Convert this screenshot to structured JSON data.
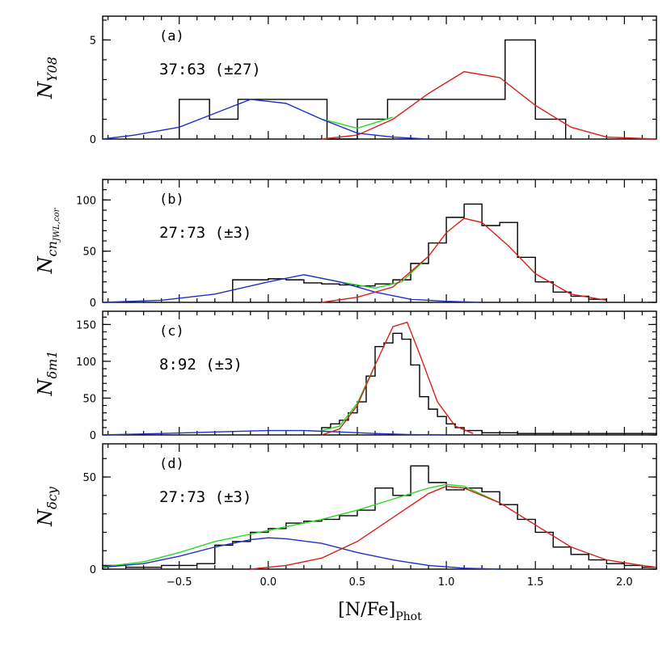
{
  "colors": {
    "hist": "#000000",
    "blue": "#1f2fc8",
    "red": "#d8201a",
    "green": "#22dd22"
  },
  "chart_data": {
    "type": "multi-panel histogram",
    "xlabel_main": "[N/Fe]",
    "xlabel_sub": "Phot",
    "xlim": [
      -0.93,
      2.18
    ],
    "xticks": [
      "−0.5",
      "0.0",
      "0.5",
      "1.0",
      "1.5",
      "2.0"
    ],
    "xtick_values": [
      -0.5,
      0.0,
      0.5,
      1.0,
      1.5,
      2.0
    ],
    "panels": [
      {
        "label": "(a)",
        "ratio": "37:63 (±27)",
        "ylabel_main": "N",
        "ylabel_sub": "Y08",
        "ylim": [
          0,
          6.2
        ],
        "yticks": [
          "0",
          "5"
        ],
        "ytick_values": [
          0,
          5
        ],
        "hist_edges": [
          -0.5,
          -0.33,
          -0.17,
          0.0,
          0.17,
          0.33,
          0.5,
          0.67,
          0.83,
          1.0,
          1.17,
          1.33,
          1.5,
          1.67
        ],
        "hist_counts": [
          2,
          1,
          2,
          2,
          2,
          0,
          1,
          2,
          2,
          2,
          2,
          5,
          1
        ],
        "blue": {
          "x": [
            -0.93,
            -0.75,
            -0.5,
            -0.3,
            -0.1,
            0.1,
            0.3,
            0.5,
            0.7,
            0.9
          ],
          "y": [
            0.0,
            0.2,
            0.6,
            1.3,
            2.0,
            1.8,
            1.0,
            0.3,
            0.1,
            0.0
          ]
        },
        "red": {
          "x": [
            0.3,
            0.5,
            0.7,
            0.9,
            1.1,
            1.3,
            1.5,
            1.7,
            1.9,
            2.18
          ],
          "y": [
            0.0,
            0.2,
            1.0,
            2.3,
            3.4,
            3.1,
            1.7,
            0.6,
            0.1,
            0.0
          ]
        },
        "green": {
          "x": [
            0.3,
            0.5,
            0.7
          ],
          "y": [
            1.0,
            0.55,
            1.1
          ]
        }
      },
      {
        "label": "(b)",
        "ratio": "27:73 (±3)",
        "ylabel_main": "N",
        "ylabel_sub": "cn",
        "ylabel_sub2": "JWL,cor",
        "ylim": [
          0,
          120
        ],
        "yticks": [
          "0",
          "50",
          "100"
        ],
        "ytick_values": [
          0,
          50,
          100
        ],
        "hist_edges": [
          -0.2,
          -0.1,
          0.0,
          0.1,
          0.2,
          0.3,
          0.4,
          0.5,
          0.6,
          0.7,
          0.8,
          0.9,
          1.0,
          1.1,
          1.2,
          1.3,
          1.4,
          1.5,
          1.6,
          1.7,
          1.8,
          1.9
        ],
        "hist_counts": [
          22,
          22,
          23,
          22,
          19,
          18,
          17,
          16,
          18,
          22,
          38,
          58,
          83,
          96,
          75,
          78,
          44,
          20,
          10,
          6,
          3
        ],
        "blue": {
          "x": [
            -0.93,
            -0.6,
            -0.3,
            0.0,
            0.2,
            0.4,
            0.6,
            0.8,
            1.0,
            1.2
          ],
          "y": [
            0,
            2,
            8,
            20,
            27,
            20,
            10,
            3,
            1,
            0
          ]
        },
        "red": {
          "x": [
            0.3,
            0.5,
            0.7,
            0.9,
            1.0,
            1.1,
            1.2,
            1.35,
            1.5,
            1.7,
            1.9
          ],
          "y": [
            0,
            5,
            15,
            45,
            68,
            82,
            78,
            55,
            28,
            8,
            2
          ]
        },
        "green": {
          "x": [
            0.2,
            0.4,
            0.6,
            0.75,
            0.9
          ],
          "y": [
            27,
            20,
            14,
            20,
            45
          ]
        }
      },
      {
        "label": "(c)",
        "ratio": "8:92 (±3)",
        "ylabel_main": "N",
        "ylabel_sub": "δm1",
        "ylim": [
          0,
          168
        ],
        "yticks": [
          "0",
          "50",
          "100",
          "150"
        ],
        "ytick_values": [
          0,
          50,
          100,
          150
        ],
        "hist_edges": [
          0.3,
          0.35,
          0.4,
          0.45,
          0.5,
          0.55,
          0.6,
          0.65,
          0.7,
          0.75,
          0.8,
          0.85,
          0.9,
          0.95,
          1.0,
          1.05,
          1.1,
          1.2,
          1.4,
          2.18
        ],
        "hist_counts": [
          10,
          15,
          20,
          30,
          45,
          80,
          120,
          125,
          138,
          130,
          95,
          52,
          35,
          25,
          15,
          10,
          6,
          3,
          2
        ],
        "blue": {
          "x": [
            -0.93,
            -0.6,
            -0.3,
            0.0,
            0.2,
            0.4,
            0.6,
            0.8,
            1.0
          ],
          "y": [
            0,
            2,
            4,
            6,
            6,
            4,
            2,
            0.5,
            0
          ]
        },
        "red": {
          "x": [
            0.3,
            0.4,
            0.5,
            0.6,
            0.7,
            0.78,
            0.85,
            0.95,
            1.05,
            1.15
          ],
          "y": [
            0,
            8,
            40,
            95,
            147,
            153,
            110,
            45,
            12,
            2
          ]
        },
        "green": {
          "x": [
            0.3,
            0.4,
            0.5,
            0.6
          ],
          "y": [
            6,
            12,
            43,
            95
          ]
        }
      },
      {
        "label": "(d)",
        "ratio": "27:73 (±3)",
        "ylabel_main": "N",
        "ylabel_sub": "δcy",
        "ylim": [
          0,
          68
        ],
        "yticks": [
          "0",
          "50"
        ],
        "ytick_values": [
          0,
          50
        ],
        "hist_edges": [
          -0.93,
          -0.8,
          -0.7,
          -0.6,
          -0.5,
          -0.4,
          -0.3,
          -0.2,
          -0.1,
          0.0,
          0.1,
          0.2,
          0.3,
          0.4,
          0.5,
          0.6,
          0.7,
          0.8,
          0.9,
          1.0,
          1.1,
          1.2,
          1.3,
          1.4,
          1.5,
          1.6,
          1.7,
          1.8,
          1.9,
          2.0,
          2.1,
          2.18
        ],
        "hist_counts": [
          2,
          1,
          1,
          2,
          2,
          3,
          13,
          15,
          20,
          22,
          25,
          26,
          27,
          29,
          32,
          44,
          40,
          56,
          47,
          43,
          44,
          42,
          35,
          27,
          20,
          12,
          8,
          5,
          3,
          2,
          1
        ],
        "blue": {
          "x": [
            -0.93,
            -0.7,
            -0.5,
            -0.3,
            -0.1,
            0.0,
            0.1,
            0.3,
            0.5,
            0.7,
            0.9,
            1.1,
            1.3
          ],
          "y": [
            1,
            3,
            7,
            12,
            16,
            17,
            16.5,
            14,
            9,
            5,
            2,
            0.5,
            0
          ]
        },
        "red": {
          "x": [
            -0.1,
            0.1,
            0.3,
            0.5,
            0.7,
            0.9,
            1.0,
            1.1,
            1.3,
            1.5,
            1.7,
            1.9,
            2.1,
            2.18
          ],
          "y": [
            0,
            2,
            6,
            15,
            28,
            41,
            45,
            44,
            36,
            24,
            12,
            5,
            2,
            1
          ]
        },
        "green": {
          "x": [
            -0.93,
            -0.7,
            -0.5,
            -0.3,
            -0.1,
            0.1,
            0.3,
            0.5,
            0.7,
            0.9,
            1.0,
            1.1,
            1.3
          ],
          "y": [
            1.2,
            4,
            9,
            15,
            19,
            23,
            27,
            32,
            38,
            44,
            46,
            45,
            36
          ]
        }
      }
    ]
  }
}
